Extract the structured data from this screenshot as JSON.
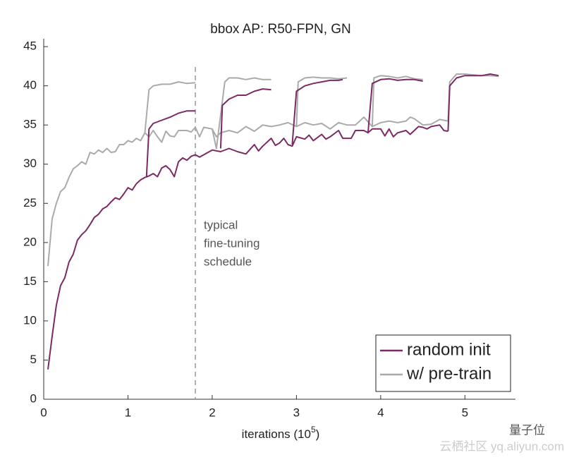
{
  "chart_data": {
    "type": "line",
    "title": "bbox AP: R50-FPN, GN",
    "xlabel": [
      "iterations (10",
      "5",
      ")"
    ],
    "xlim": [
      0,
      5.6
    ],
    "ylim": [
      0,
      46
    ],
    "xticks": [
      0,
      1,
      2,
      3,
      4,
      5
    ],
    "yticks": [
      0,
      5,
      10,
      15,
      20,
      25,
      30,
      35,
      40,
      45
    ],
    "vline": 1.8,
    "annotation": [
      "typical",
      "fine-tuning",
      "schedule"
    ],
    "legend": "lower right",
    "watermark": [
      "量子位",
      "云栖社区 yq.aliyun.com"
    ],
    "series": [
      {
        "name": "random init",
        "color": "#7b2a63",
        "x": [
          0.05,
          0.1,
          0.15,
          0.2,
          0.25,
          0.3,
          0.35,
          0.4,
          0.45,
          0.5,
          0.55,
          0.6,
          0.65,
          0.7,
          0.75,
          0.8,
          0.85,
          0.9,
          0.95,
          1.0,
          1.05,
          1.1,
          1.15,
          1.2,
          1.25,
          1.3,
          1.35,
          1.4,
          1.45,
          1.5,
          1.55,
          1.6,
          1.65,
          1.7,
          1.75,
          1.8,
          1.85,
          1.9,
          2.0,
          2.1,
          2.2,
          2.3,
          2.4,
          2.5,
          2.55,
          2.6,
          2.7,
          2.75,
          2.8,
          2.85,
          2.9,
          2.95,
          3.0,
          3.1,
          3.15,
          3.2,
          3.3,
          3.35,
          3.4,
          3.5,
          3.55,
          3.65,
          3.7,
          3.8,
          3.85,
          3.9,
          4.0,
          4.05,
          4.1,
          4.15,
          4.2,
          4.3,
          4.35,
          4.45,
          4.5,
          4.55,
          4.6,
          4.7,
          4.75,
          4.8,
          null,
          1.22,
          1.25,
          1.3,
          1.4,
          1.5,
          1.6,
          1.7,
          1.8,
          null,
          2.1,
          2.12,
          2.2,
          2.3,
          2.4,
          2.5,
          2.6,
          2.7,
          null,
          2.95,
          3.0,
          3.1,
          3.2,
          3.3,
          3.4,
          3.5,
          3.55,
          null,
          3.85,
          3.9,
          4.0,
          4.1,
          4.2,
          4.3,
          4.4,
          4.5,
          null,
          4.8,
          4.82,
          4.9,
          5.0,
          5.1,
          5.2,
          5.3,
          5.4
        ],
        "values": [
          3.8,
          8,
          12,
          14.5,
          15.5,
          17.5,
          18.5,
          20.3,
          21,
          21.5,
          22.3,
          23.2,
          23.6,
          24.3,
          24.6,
          25.2,
          25.7,
          25.5,
          26.2,
          27,
          26.7,
          27.5,
          28,
          28.3,
          28.5,
          28.8,
          28.4,
          29.5,
          29.8,
          29.3,
          28.4,
          30.3,
          30.8,
          30.5,
          31,
          31.2,
          30.9,
          31.2,
          31.8,
          31.6,
          32,
          31.6,
          31.3,
          32.5,
          31.7,
          32.3,
          33.3,
          32.4,
          32.7,
          33.3,
          32.5,
          32.3,
          33.5,
          33.2,
          33.7,
          33,
          33.8,
          33.2,
          33.5,
          34.3,
          33.3,
          33.3,
          34.3,
          34.3,
          34,
          34.5,
          34.5,
          33.6,
          34.5,
          33.5,
          34,
          34.3,
          33.8,
          34.8,
          34.7,
          34.5,
          34.8,
          35,
          34.3,
          34.2,
          null,
          28.3,
          34.5,
          35.2,
          35.6,
          36,
          36.5,
          36.8,
          36.8,
          null,
          32,
          37.5,
          38.3,
          38.8,
          38.8,
          39.3,
          39.6,
          39.5,
          null,
          32.5,
          39.3,
          40,
          40.3,
          40.5,
          40.7,
          40.7,
          40.8,
          null,
          34,
          40.3,
          40.8,
          40.9,
          40.7,
          40.8,
          40.8,
          40.6,
          null,
          34.2,
          40,
          41,
          41.3,
          41.3,
          41.3,
          41.5,
          41.3
        ]
      },
      {
        "name": "w/ pre-train",
        "color": "#aaaaaa",
        "x": [
          0.05,
          0.1,
          0.15,
          0.2,
          0.25,
          0.3,
          0.35,
          0.4,
          0.45,
          0.5,
          0.55,
          0.6,
          0.65,
          0.7,
          0.75,
          0.8,
          0.85,
          0.9,
          0.95,
          1.0,
          1.05,
          1.1,
          1.15,
          1.2,
          1.25,
          1.3,
          1.35,
          1.4,
          1.45,
          1.5,
          1.55,
          1.6,
          1.7,
          1.75,
          1.8,
          1.85,
          1.9,
          2.0,
          2.05,
          2.1,
          2.2,
          2.3,
          2.4,
          2.5,
          2.6,
          2.7,
          2.8,
          2.9,
          3.0,
          3.1,
          3.2,
          3.3,
          3.4,
          3.5,
          3.6,
          3.7,
          3.8,
          3.9,
          4.0,
          4.1,
          4.2,
          4.3,
          4.35,
          4.4,
          4.5,
          4.6,
          4.7,
          4.8,
          null,
          1.2,
          1.25,
          1.3,
          1.4,
          1.5,
          1.6,
          1.7,
          1.8,
          null,
          2.0,
          2.05,
          2.15,
          2.2,
          2.3,
          2.4,
          2.5,
          2.6,
          2.7,
          null,
          3.0,
          3.02,
          3.1,
          3.2,
          3.3,
          3.4,
          3.5,
          3.6,
          null,
          3.9,
          3.92,
          4.0,
          4.1,
          4.2,
          4.3,
          4.4,
          4.5,
          null,
          4.8,
          4.82,
          4.9,
          5.0,
          5.1,
          5.2,
          5.3,
          5.4
        ],
        "values": [
          17,
          23,
          25,
          26.5,
          27,
          28.3,
          29.4,
          29.8,
          30.3,
          30,
          31.5,
          31.3,
          31.8,
          31.5,
          32,
          31.5,
          31.6,
          32.5,
          32.5,
          33,
          32.8,
          33.3,
          33,
          34,
          33.5,
          34.3,
          33.5,
          32.8,
          34.2,
          33.6,
          33.5,
          34.3,
          34.3,
          34.1,
          34.7,
          33.5,
          34.7,
          34.5,
          33.5,
          34,
          34.3,
          34,
          34.8,
          34.2,
          35,
          34.8,
          35,
          35.3,
          34.8,
          35.3,
          35,
          35.2,
          34.5,
          35.3,
          35,
          35,
          36,
          34.8,
          35.3,
          35.5,
          35.3,
          35.5,
          36,
          35.8,
          35,
          35.1,
          35.7,
          35.5,
          null,
          34,
          39.5,
          40,
          40.2,
          40.2,
          40.5,
          40.3,
          40.4,
          null,
          34.5,
          32,
          40.5,
          41,
          41,
          40.8,
          41,
          40.8,
          40.8,
          null,
          34.8,
          40.5,
          41,
          41.1,
          41,
          41,
          40.9,
          41,
          null,
          34.8,
          41,
          41.3,
          41.2,
          41,
          41.2,
          40.9,
          40.8,
          null,
          35.5,
          40.5,
          41.5,
          41.5,
          41.4,
          41.3,
          41.3,
          41.2
        ]
      }
    ]
  }
}
